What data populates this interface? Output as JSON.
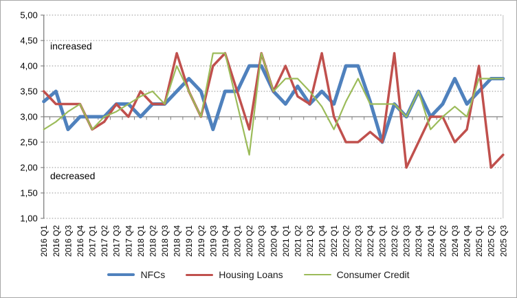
{
  "chart_data": {
    "type": "line",
    "title": "",
    "xlabel": "",
    "ylabel": "",
    "ylim": [
      1.0,
      5.0
    ],
    "ytick_step": 0.5,
    "grid": "dotted horizontal gridlines, solid axis line at 3.00",
    "legend_position": "bottom",
    "axis_cross_value": 3.0,
    "ytick_labels": [
      "5,00",
      "4,50",
      "4,00",
      "3,50",
      "3,00",
      "2,50",
      "2,00",
      "1,50",
      "1,00"
    ],
    "categories": [
      "2016 Q1",
      "2016 Q2",
      "2016 Q3",
      "2016 Q4",
      "2017 Q1",
      "2017 Q2",
      "2017 Q3",
      "2017 Q4",
      "2018 Q1",
      "2018 Q2",
      "2018 Q3",
      "2018 Q4",
      "2019 Q1",
      "2019 Q2",
      "2019 Q3",
      "2019 Q4",
      "2020 Q1",
      "2020 Q2",
      "2020 Q3",
      "2020 Q4",
      "2021 Q1",
      "2021 Q2",
      "2021 Q3",
      "2021 Q4",
      "2022 Q1",
      "2022 Q2",
      "2022 Q3",
      "2022 Q4",
      "2023 Q1",
      "2023 Q2",
      "2023 Q3",
      "2023 Q4",
      "2024 Q1",
      "2024 Q2",
      "2024 Q3",
      "2024 Q4",
      "2025 Q1",
      "2025 Q2",
      "2025 Q3"
    ],
    "series": [
      {
        "name": "NFCs",
        "color": "#4F81BD",
        "line_width": 5,
        "values": [
          3.3,
          3.5,
          2.75,
          3.0,
          3.0,
          3.0,
          3.25,
          3.25,
          3.0,
          3.25,
          3.25,
          3.5,
          3.75,
          3.5,
          2.75,
          3.5,
          3.5,
          4.0,
          4.0,
          3.5,
          3.25,
          3.6,
          3.25,
          3.5,
          3.25,
          4.0,
          4.0,
          3.3,
          2.5,
          3.25,
          3.0,
          3.5,
          3.0,
          3.25,
          3.75,
          3.25,
          3.5,
          3.75,
          3.75
        ]
      },
      {
        "name": "Housing Loans",
        "color": "#C0504D",
        "line_width": 3.5,
        "values": [
          3.5,
          3.25,
          3.25,
          3.25,
          2.75,
          2.9,
          3.25,
          3.0,
          3.5,
          3.25,
          3.25,
          4.25,
          3.5,
          3.0,
          4.0,
          4.25,
          3.5,
          2.75,
          4.25,
          3.5,
          4.0,
          3.4,
          3.25,
          4.25,
          3.0,
          2.5,
          2.5,
          2.7,
          2.5,
          4.25,
          2.0,
          2.5,
          3.0,
          3.0,
          2.5,
          2.75,
          4.0,
          2.0,
          2.25
        ]
      },
      {
        "name": "Consumer Credit",
        "color": "#9BBB59",
        "line_width": 2.2,
        "values": [
          2.75,
          2.9,
          3.1,
          3.25,
          2.75,
          3.0,
          3.1,
          3.25,
          3.4,
          3.5,
          3.25,
          4.0,
          3.5,
          3.0,
          4.25,
          4.25,
          3.25,
          2.25,
          4.25,
          3.5,
          3.75,
          3.75,
          3.5,
          3.2,
          2.75,
          3.3,
          3.75,
          3.25,
          3.25,
          3.25,
          3.0,
          3.5,
          2.75,
          3.0,
          3.2,
          3.0,
          3.75,
          3.75,
          3.75
        ]
      }
    ],
    "annotations": [
      {
        "text": "increased"
      },
      {
        "text": "decreased"
      }
    ]
  }
}
